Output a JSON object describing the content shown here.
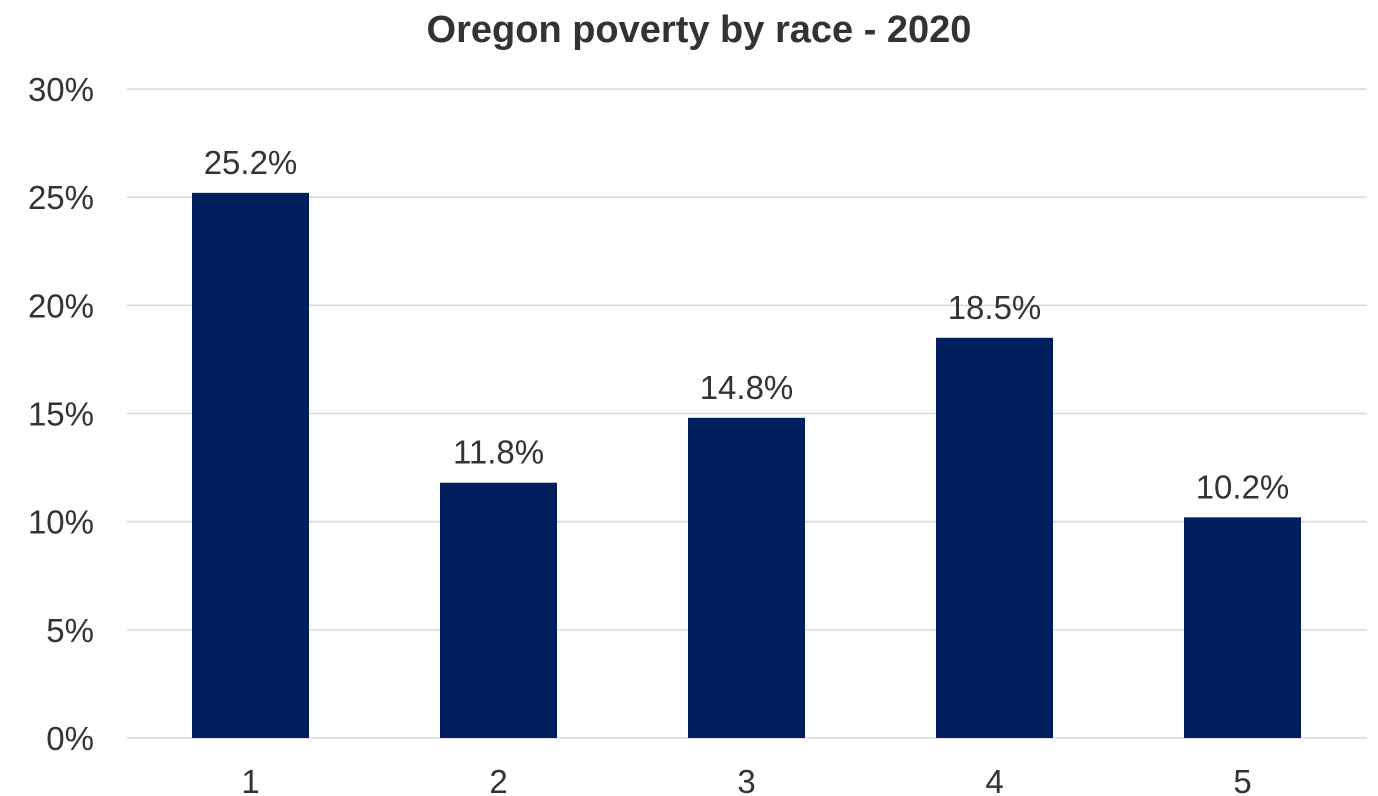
{
  "chart_data": {
    "type": "bar",
    "title": "Oregon poverty by race - 2020",
    "xlabel": "",
    "ylabel": "",
    "categories": [
      "1",
      "2",
      "3",
      "4",
      "5"
    ],
    "values": [
      25.2,
      11.8,
      14.8,
      18.5,
      10.2
    ],
    "data_labels": [
      "25.2%",
      "11.8%",
      "14.8%",
      "18.5%",
      "10.2%"
    ],
    "ylim": [
      0,
      30
    ],
    "yticks": [
      0,
      5,
      10,
      15,
      20,
      25,
      30
    ],
    "ytick_labels": [
      "0%",
      "5%",
      "10%",
      "15%",
      "20%",
      "25%",
      "30%"
    ],
    "grid": true,
    "legend": "none",
    "bar_color": "#001F5C"
  }
}
